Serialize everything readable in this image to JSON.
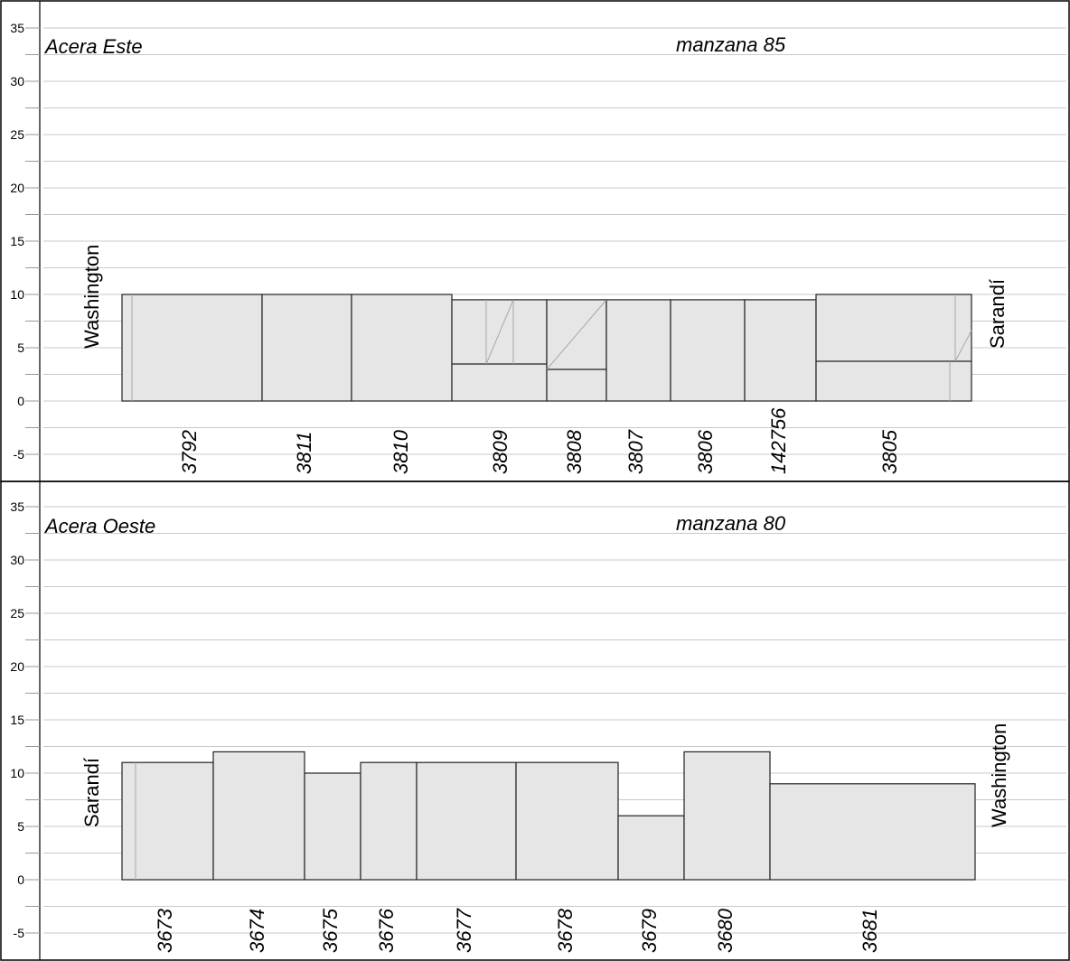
{
  "panels": [
    {
      "side_label": "Acera Este",
      "block_label": "manzana 85",
      "left_street": "Washington",
      "right_street": "Sarandí",
      "y_ticks": [
        "35",
        "30",
        "25",
        "20",
        "15",
        "10",
        "5",
        "0",
        "-5"
      ],
      "lots": [
        {
          "id": "3792",
          "height": 10
        },
        {
          "id": "3811",
          "height": 10
        },
        {
          "id": "3810",
          "height": 10
        },
        {
          "id": "3809",
          "height": 9.5
        },
        {
          "id": "3808",
          "height": 9.5
        },
        {
          "id": "3807",
          "height": 9.5
        },
        {
          "id": "3806",
          "height": 9.5
        },
        {
          "id": "142756",
          "height": 9.5
        },
        {
          "id": "3805",
          "height": 10
        }
      ]
    },
    {
      "side_label": "Acera Oeste",
      "block_label": "manzana 80",
      "left_street": "Sarandí",
      "right_street": "Washington",
      "y_ticks": [
        "35",
        "30",
        "25",
        "20",
        "15",
        "10",
        "5",
        "0",
        "-5"
      ],
      "lots": [
        {
          "id": "3673",
          "height": 11
        },
        {
          "id": "3674",
          "height": 12
        },
        {
          "id": "3675",
          "height": 10
        },
        {
          "id": "3676",
          "height": 11
        },
        {
          "id": "3677",
          "height": 11
        },
        {
          "id": "3678",
          "height": 11
        },
        {
          "id": "3679",
          "height": 6
        },
        {
          "id": "3680",
          "height": 12
        },
        {
          "id": "3681",
          "height": 9
        }
      ]
    }
  ]
}
